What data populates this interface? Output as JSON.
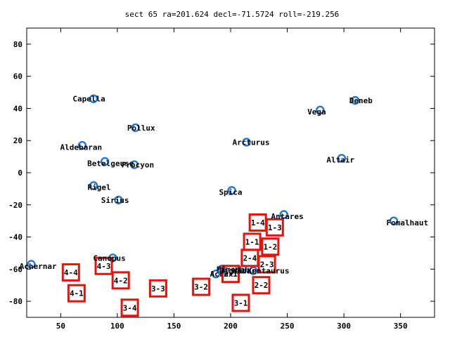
{
  "chart_data": {
    "type": "scatter",
    "title": "sect 65 ra=201.624 decl=-71.5724 roll=-219.256",
    "xlim": [
      20,
      380
    ],
    "ylim": [
      -90,
      90
    ],
    "x_ticks": [
      50,
      100,
      150,
      200,
      250,
      300,
      350
    ],
    "y_ticks": [
      -80,
      -60,
      -40,
      -20,
      0,
      20,
      40,
      60,
      80
    ],
    "grid": false,
    "legend": "none",
    "marker_color": "#1f77d8",
    "box_color": "#e8120c",
    "stars": [
      {
        "name": "Capella",
        "x": 79,
        "y": 46
      },
      {
        "name": "Pollux",
        "x": 116,
        "y": 28
      },
      {
        "name": "Aldebaran",
        "x": 69,
        "y": 17
      },
      {
        "name": "Betelgeuse",
        "x": 89,
        "y": 7
      },
      {
        "name": "Procyon",
        "x": 115,
        "y": 5
      },
      {
        "name": "Rigel",
        "x": 79,
        "y": -8
      },
      {
        "name": "Sirius",
        "x": 101,
        "y": -17
      },
      {
        "name": "Canopus",
        "x": 96,
        "y": -53
      },
      {
        "name": "Achernar",
        "x": 24,
        "y": -57
      },
      {
        "name": "Arcturus",
        "x": 214,
        "y": 19
      },
      {
        "name": "Spica",
        "x": 201,
        "y": -11
      },
      {
        "name": "Antares",
        "x": 247,
        "y": -26
      },
      {
        "name": "Mimosa",
        "x": 192,
        "y": -60
      },
      {
        "name": "Acrux",
        "x": 187,
        "y": -63
      },
      {
        "name": "Hadar",
        "x": 211,
        "y": -60
      },
      {
        "name": "Rigil Kentaurus",
        "x": 220,
        "y": -61
      },
      {
        "name": "Vega",
        "x": 279,
        "y": 39
      },
      {
        "name": "Deneb",
        "x": 310,
        "y": 45
      },
      {
        "name": "Altair",
        "x": 298,
        "y": 9
      },
      {
        "name": "Fomalhaut",
        "x": 344,
        "y": -30
      }
    ],
    "labels": [
      {
        "text": "Capella",
        "x": 75,
        "y": 46
      },
      {
        "text": "Pollux",
        "x": 121,
        "y": 28
      },
      {
        "text": "Aldebaran",
        "x": 68,
        "y": 16
      },
      {
        "text": "Betelgeuse",
        "x": 94,
        "y": 6
      },
      {
        "text": "Procyon",
        "x": 118,
        "y": 5
      },
      {
        "text": "Rigel",
        "x": 84,
        "y": -9
      },
      {
        "text": "Sirius",
        "x": 98,
        "y": -17
      },
      {
        "text": "Canopus",
        "x": 93,
        "y": -53
      },
      {
        "text": "Achernar",
        "x": 30,
        "y": -58
      },
      {
        "text": "Arcturus",
        "x": 218,
        "y": 19
      },
      {
        "text": "Spica",
        "x": 200,
        "y": -12
      },
      {
        "text": "Antares",
        "x": 250,
        "y": -27
      },
      {
        "text": "Mimosa",
        "x": 200,
        "y": -60
      },
      {
        "text": "Acrux",
        "x": 192,
        "y": -63
      },
      {
        "text": "Hadar",
        "x": 212,
        "y": -61
      },
      {
        "text": "Rigil Kentaurus",
        "x": 221,
        "y": -61
      },
      {
        "text": "Vega",
        "x": 276,
        "y": 38
      },
      {
        "text": "Deneb",
        "x": 315,
        "y": 45
      },
      {
        "text": "Altair",
        "x": 297,
        "y": 8
      },
      {
        "text": "Fomalhaut",
        "x": 356,
        "y": -31
      }
    ],
    "boxes": [
      {
        "label": "1-4",
        "x": 224,
        "y": -31
      },
      {
        "label": "1-3",
        "x": 239,
        "y": -34
      },
      {
        "label": "1-1",
        "x": 219,
        "y": -43
      },
      {
        "label": "1-2",
        "x": 235,
        "y": -46
      },
      {
        "label": "2-4",
        "x": 217,
        "y": -53
      },
      {
        "label": "2-3",
        "x": 232,
        "y": -57
      },
      {
        "label": "2-1",
        "x": 200,
        "y": -63
      },
      {
        "label": "2-2",
        "x": 227,
        "y": -70
      },
      {
        "label": "3-2",
        "x": 174,
        "y": -71
      },
      {
        "label": "3-1",
        "x": 209,
        "y": -81
      },
      {
        "label": "3-3",
        "x": 136,
        "y": -72
      },
      {
        "label": "3-4",
        "x": 111,
        "y": -84
      },
      {
        "label": "4-3",
        "x": 88,
        "y": -58
      },
      {
        "label": "4-4",
        "x": 59,
        "y": -62
      },
      {
        "label": "4-2",
        "x": 103,
        "y": -67
      },
      {
        "label": "4-1",
        "x": 64,
        "y": -75
      }
    ]
  }
}
